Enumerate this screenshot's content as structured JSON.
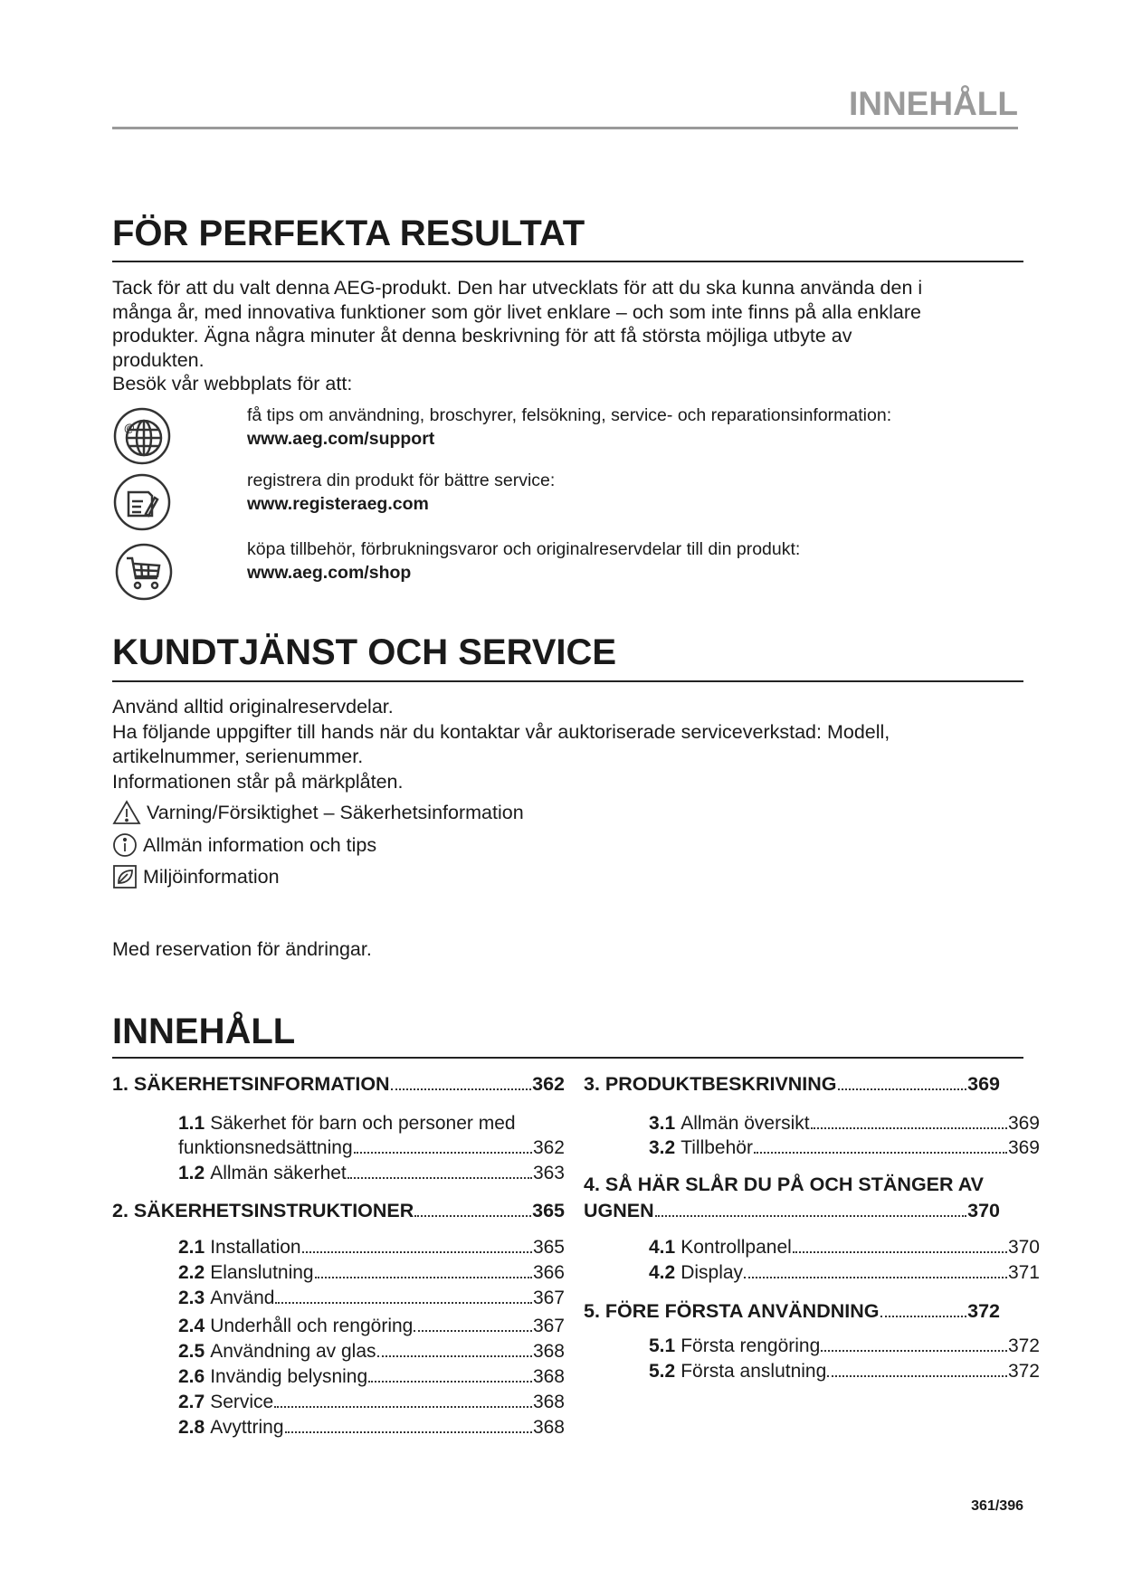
{
  "running_header": "INNEHÅLL",
  "section1": {
    "title": "FÖR PERFEKTA RESULTAT",
    "paragraph_lines": [
      "Tack för att du valt denna AEG-produkt. Den har utvecklats för att du ska kunna använda den i",
      "många år, med innovativa funktioner som gör livet enklare – och som inte finns på alla enklare",
      "produkter. Ägna några minuter åt denna beskrivning för att få största möjliga utbyte av",
      "produkten.",
      "Besök vår webbplats för att:"
    ],
    "links": [
      {
        "icon": "globe-icon",
        "text": "få tips om användning, broschyrer, felsökning, service- och reparationsinformation:",
        "url": "www.aeg.com/support"
      },
      {
        "icon": "document-pen-icon",
        "text": "registrera din produkt för bättre service:",
        "url": "www.registeraeg.com"
      },
      {
        "icon": "shopping-cart-icon",
        "text": "köpa tillbehör, förbrukningsvaror och originalreservdelar till din produkt:",
        "url": "www.aeg.com/shop"
      }
    ]
  },
  "section2": {
    "title": "KUNDTJÄNST OCH SERVICE",
    "lines": [
      "Använd alltid originalreservdelar.",
      "Ha följande uppgifter till hands när du kontaktar vår auktoriserade serviceverkstad: Modell,",
      "artikelnummer, serienummer.",
      "Informationen står på märkplåten."
    ],
    "symbols": [
      {
        "icon": "warning-triangle-icon",
        "text": "Varning/Försiktighet – Säkerhetsinformation"
      },
      {
        "icon": "info-icon",
        "text": "Allmän information och tips"
      },
      {
        "icon": "leaf-icon",
        "text": "Miljöinformation"
      }
    ],
    "note": "Med reservation för ändringar."
  },
  "toc": {
    "title": "INNEHÅLL",
    "left": [
      {
        "type": "h",
        "label": "1. SÄKERHETSINFORMATION",
        "page": "362"
      },
      {
        "type": "s",
        "num": "1.1",
        "label": "Säkerhet för barn och personer med",
        "page": ""
      },
      {
        "type": "c",
        "label": "funktionsnedsättning",
        "page": "362"
      },
      {
        "type": "s",
        "num": "1.2",
        "label": "Allmän säkerhet",
        "page": "363"
      },
      {
        "type": "h",
        "label": "2. SÄKERHETSINSTRUKTIONER",
        "page": "365"
      },
      {
        "type": "s",
        "num": "2.1",
        "label": "Installation",
        "page": "365"
      },
      {
        "type": "s",
        "num": "2.2",
        "label": "Elanslutning",
        "page": "366"
      },
      {
        "type": "s",
        "num": "2.3",
        "label": "Använd",
        "page": "367"
      },
      {
        "type": "s",
        "num": "2.4",
        "label": "Underhåll och rengöring",
        "page": "367"
      },
      {
        "type": "s",
        "num": "2.5",
        "label": "Användning av glas",
        "page": "368"
      },
      {
        "type": "s",
        "num": "2.6",
        "label": "Invändig belysning",
        "page": "368"
      },
      {
        "type": "s",
        "num": "2.7",
        "label": "Service",
        "page": "368"
      },
      {
        "type": "s",
        "num": "2.8",
        "label": "Avyttring",
        "page": "368"
      }
    ],
    "right": [
      {
        "type": "h",
        "label": "3. PRODUKTBESKRIVNING",
        "page": "369"
      },
      {
        "type": "s",
        "num": "3.1",
        "label": "Allmän översikt",
        "page": "369"
      },
      {
        "type": "s",
        "num": "3.2",
        "label": "Tillbehör",
        "page": "369"
      },
      {
        "type": "hx",
        "label": "4. SÅ HÄR SLÅR DU PÅ OCH STÄNGER AV",
        "page": ""
      },
      {
        "type": "h",
        "label": "UGNEN",
        "page": "370"
      },
      {
        "type": "s",
        "num": "4.1",
        "label": "Kontrollpanel",
        "page": "370"
      },
      {
        "type": "s",
        "num": "4.2",
        "label": "Display",
        "page": "371"
      },
      {
        "type": "h",
        "label": "5. FÖRE FÖRSTA ANVÄNDNING",
        "page": "372"
      },
      {
        "type": "s",
        "num": "5.1",
        "label": "Första rengöring",
        "page": "372"
      },
      {
        "type": "s",
        "num": "5.2",
        "label": "Första anslutning",
        "page": "372"
      }
    ]
  },
  "page_number": "361/396"
}
